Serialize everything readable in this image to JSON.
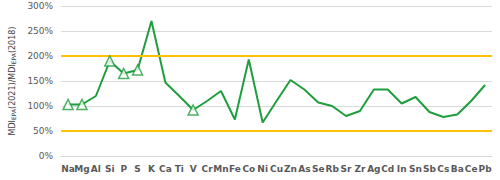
{
  "chart_data": {
    "type": "line",
    "ylabel": [
      {
        "text": "MDI"
      },
      {
        "text": "EPA",
        "sub": true
      },
      {
        "text": "(2021)/MDI"
      },
      {
        "text": "EPA",
        "sub": true
      },
      {
        "text": "(2018)"
      }
    ],
    "categories": [
      "Na",
      "Mg",
      "Al",
      "Si",
      "P",
      "S",
      "K",
      "Ca",
      "Ti",
      "V",
      "Cr",
      "Mn",
      "Fe",
      "Co",
      "Ni",
      "Cu",
      "Zn",
      "As",
      "Se",
      "Rb",
      "Sr",
      "Zr",
      "Ag",
      "Cd",
      "In",
      "Sn",
      "Sb",
      "Cs",
      "Ba",
      "Ce",
      "Pb"
    ],
    "series": [
      {
        "type": "line",
        "marker": "none",
        "line_style": "solid",
        "color": "#1e9e3c",
        "values": [
          103,
          103,
          120,
          190,
          165,
          172,
          270,
          147,
          120,
          92,
          110,
          130,
          73,
          193,
          67,
          110,
          152,
          133,
          107,
          100,
          80,
          90,
          133,
          133,
          105,
          118,
          88,
          78,
          83,
          110,
          142
        ]
      },
      {
        "type": "scatter",
        "marker": "triangle",
        "color": "#1e9e3c",
        "values": [
          103,
          103,
          null,
          190,
          165,
          172,
          null,
          null,
          null,
          92,
          null,
          null,
          null,
          null,
          null,
          null,
          null,
          null,
          null,
          null,
          null,
          null,
          null,
          null,
          null,
          null,
          null,
          null,
          null,
          null,
          null
        ]
      }
    ],
    "hlines": [
      {
        "value": 50,
        "color": "#ffc000"
      },
      {
        "value": 200,
        "color": "#ffc000"
      }
    ],
    "ylim": [
      0,
      300
    ],
    "yticks": [
      {
        "value": 0,
        "label": "0%"
      },
      {
        "value": 50,
        "label": "50%"
      },
      {
        "value": 100,
        "label": "100%"
      },
      {
        "value": 150,
        "label": "150%"
      },
      {
        "value": 200,
        "label": "200%"
      },
      {
        "value": 250,
        "label": "250%"
      },
      {
        "value": 300,
        "label": "300%"
      }
    ],
    "grid": true
  }
}
